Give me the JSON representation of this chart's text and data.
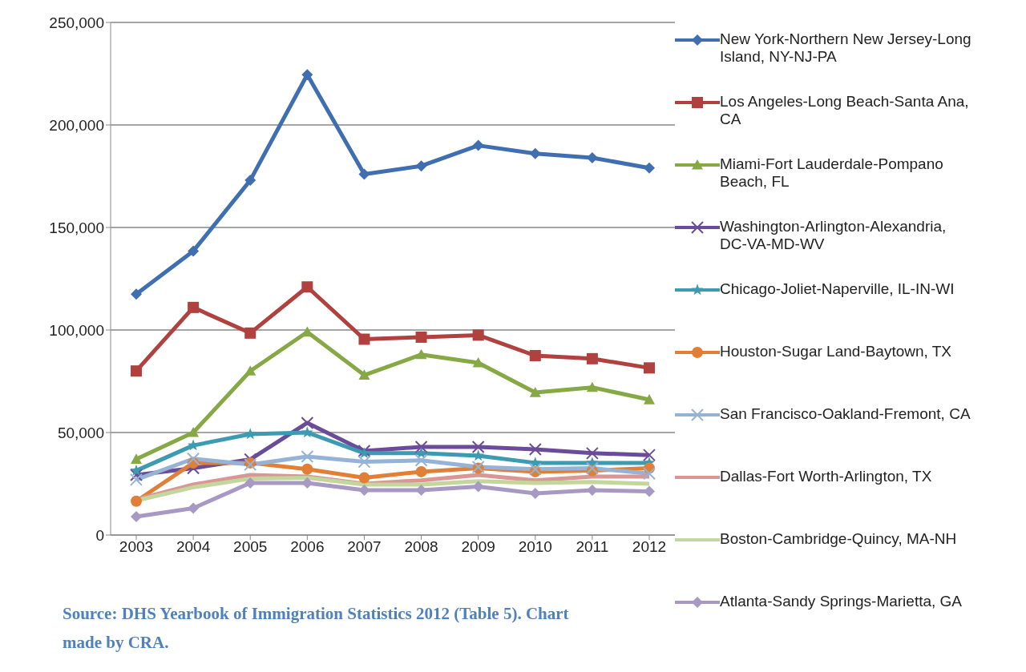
{
  "chart_data": {
    "type": "line",
    "categories": [
      "2003",
      "2004",
      "2005",
      "2006",
      "2007",
      "2008",
      "2009",
      "2010",
      "2011",
      "2012"
    ],
    "series": [
      {
        "name": "New York-Northern New Jersey-Long Island, NY-NJ-PA",
        "color": "#3f6fb0",
        "marker": "diamond",
        "values": [
          117500,
          138500,
          173000,
          224500,
          176000,
          180000,
          190000,
          186000,
          184000,
          179000
        ]
      },
      {
        "name": "Los Angeles-Long Beach-Santa Ana, CA",
        "color": "#b0413e",
        "marker": "square",
        "values": [
          80000,
          111000,
          98500,
          121000,
          95500,
          96500,
          97500,
          87500,
          86000,
          81500
        ]
      },
      {
        "name": "Miami-Fort Lauderdale-Pompano Beach, FL",
        "color": "#86a845",
        "marker": "triangle",
        "values": [
          37000,
          50000,
          80000,
          99000,
          78000,
          88000,
          84000,
          69500,
          72000,
          66000
        ]
      },
      {
        "name": "Washington-Arlington-Alexandria, DC-VA-MD-WV",
        "color": "#6b4c9a",
        "marker": "cross",
        "values": [
          29300,
          32600,
          36900,
          54700,
          41000,
          43000,
          43000,
          41800,
          39900,
          39000
        ]
      },
      {
        "name": "Chicago-Joliet-Naperville, IL-IN-WI",
        "color": "#3c9bb0",
        "marker": "star",
        "values": [
          31400,
          43700,
          49200,
          50000,
          39900,
          39900,
          38700,
          35200,
          35200,
          35200
        ]
      },
      {
        "name": "Houston-Sugar Land-Baytown, TX",
        "color": "#e07f35",
        "marker": "circle",
        "values": [
          16500,
          35200,
          35200,
          32100,
          27900,
          30900,
          32600,
          30900,
          31400,
          32600
        ]
      },
      {
        "name": "San Francisco-Oakland-Fremont, CA",
        "color": "#95b3d7",
        "marker": "cross",
        "values": [
          27000,
          37200,
          34400,
          38300,
          35700,
          36400,
          33200,
          32100,
          32600,
          30000
        ]
      },
      {
        "name": "Dallas-Fort Worth-Arlington, TX",
        "color": "#d99694",
        "marker": "none",
        "values": [
          17300,
          24600,
          29300,
          28500,
          25000,
          26700,
          29300,
          26700,
          28500,
          28500
        ]
      },
      {
        "name": "Boston-Cambridge-Quincy, MA-NH",
        "color": "#c3d69b",
        "marker": "none",
        "values": [
          16800,
          23300,
          27500,
          27900,
          24600,
          24600,
          26300,
          25400,
          25900,
          25000
        ]
      },
      {
        "name": "Atlanta-Sandy Springs-Marietta, GA",
        "color": "#a899c4",
        "marker": "diamond",
        "values": [
          9000,
          13100,
          25400,
          25400,
          21900,
          21900,
          23600,
          20300,
          21900,
          21300
        ]
      }
    ],
    "ylim": [
      0,
      250000
    ],
    "yticks": [
      0,
      {
        "value": 50000,
        "label": "50,000"
      },
      {
        "value": 100000,
        "label": "100,000"
      },
      {
        "value": 150000,
        "label": "150,000"
      },
      {
        "value": 200000,
        "label": "200,000"
      },
      {
        "value": 250000,
        "label": "250,000"
      }
    ],
    "grid": "y",
    "legend": "right",
    "annotations": [
      "Source: DHS Yearbook of Immigration Statistics 2012 (Table 5). Chart made by CRA."
    ]
  }
}
